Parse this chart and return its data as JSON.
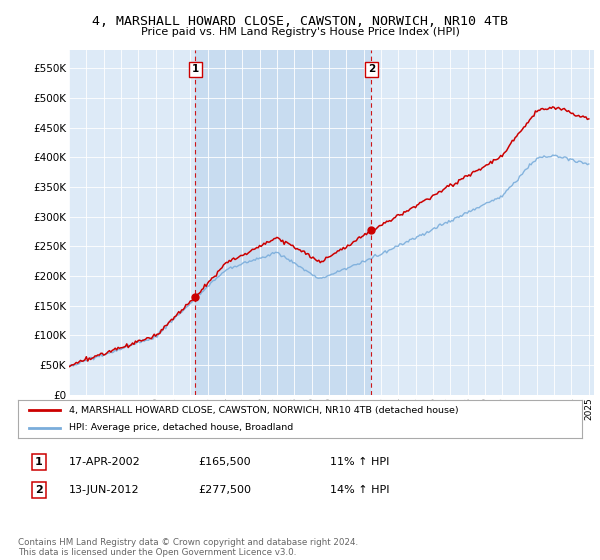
{
  "title": "4, MARSHALL HOWARD CLOSE, CAWSTON, NORWICH, NR10 4TB",
  "subtitle": "Price paid vs. HM Land Registry's House Price Index (HPI)",
  "ylabel_ticks": [
    "£0",
    "£50K",
    "£100K",
    "£150K",
    "£200K",
    "£250K",
    "£300K",
    "£350K",
    "£400K",
    "£450K",
    "£500K",
    "£550K"
  ],
  "ytick_values": [
    0,
    50000,
    100000,
    150000,
    200000,
    250000,
    300000,
    350000,
    400000,
    450000,
    500000,
    550000
  ],
  "ylim": [
    0,
    580000
  ],
  "bg_color": "#ddeaf7",
  "highlight_bg": "#c8dcf0",
  "plot_bg": "#ddeaf7",
  "legend_label_red": "4, MARSHALL HOWARD CLOSE, CAWSTON, NORWICH, NR10 4TB (detached house)",
  "legend_label_blue": "HPI: Average price, detached house, Broadland",
  "sale1_label": "1",
  "sale1_date": "17-APR-2002",
  "sale1_price": "£165,500",
  "sale1_hpi": "11% ↑ HPI",
  "sale2_label": "2",
  "sale2_date": "13-JUN-2012",
  "sale2_price": "£277,500",
  "sale2_hpi": "14% ↑ HPI",
  "footer": "Contains HM Land Registry data © Crown copyright and database right 2024.\nThis data is licensed under the Open Government Licence v3.0.",
  "sale1_year": 2002.3,
  "sale2_year": 2012.45,
  "sale1_value": 165500,
  "sale2_value": 277500,
  "red_color": "#cc0000",
  "blue_color": "#7aaddb",
  "dashed_color": "#cc0000",
  "title_fontsize": 9.5,
  "subtitle_fontsize": 8.0
}
